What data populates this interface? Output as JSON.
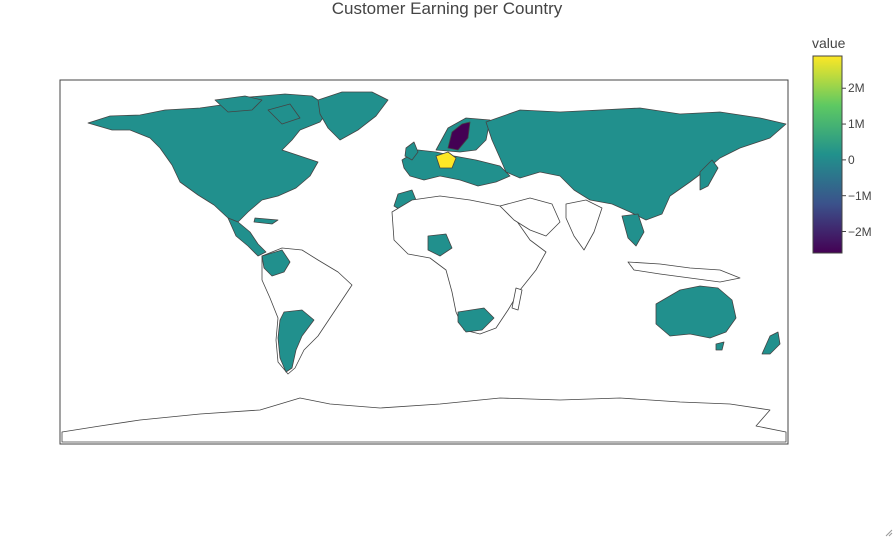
{
  "title": "Customer Earning per Country",
  "colorbar": {
    "title": "value",
    "min": -2.6,
    "max": 2.9,
    "unit_suffix": "M",
    "ticks": [
      {
        "value": 2,
        "label": "2M"
      },
      {
        "value": 1,
        "label": "1M"
      },
      {
        "value": 0,
        "label": "0"
      },
      {
        "value": -1,
        "label": "−1M"
      },
      {
        "value": -2,
        "label": "−2M"
      }
    ],
    "colorscale": [
      "#440154",
      "#3b528b",
      "#21918c",
      "#5ec962",
      "#fde725"
    ]
  },
  "map": {
    "type": "choropleth",
    "projection": "equirectangular",
    "uncolored_fill": "#ffffff",
    "border_color": "#444444",
    "countries": [
      {
        "name": "Germany",
        "value": 2.9
      },
      {
        "name": "Sweden",
        "value": -2.6
      },
      {
        "name": "Other listed countries",
        "value": 0.05
      }
    ]
  },
  "colors": {
    "zero": "#21908d",
    "high": "#fde725",
    "low": "#440154"
  }
}
